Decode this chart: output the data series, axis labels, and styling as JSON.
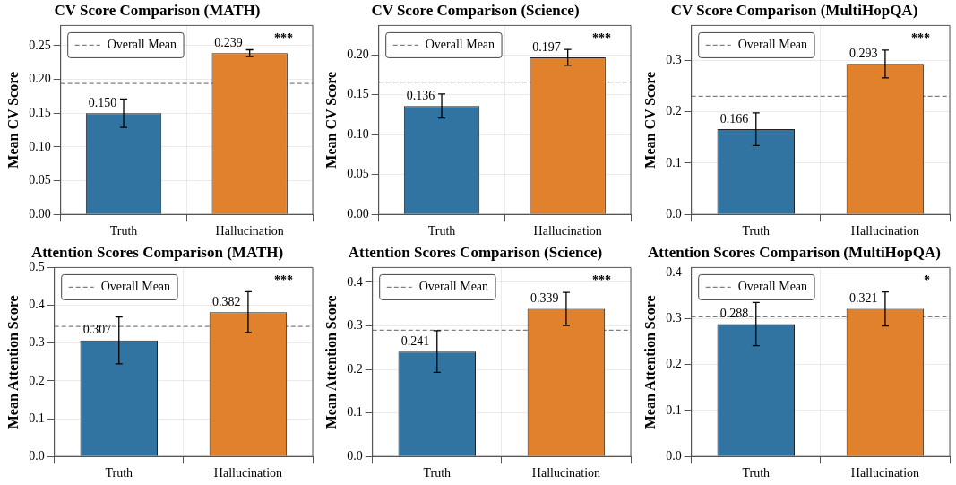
{
  "chart_data": [
    {
      "type": "bar",
      "title": "CV Score Comparison (MATH)",
      "ylabel": "Mean CV Score",
      "categories": [
        "Truth",
        "Hallucination"
      ],
      "values": [
        0.15,
        0.239
      ],
      "colors": [
        "#3274a1",
        "#e1812c"
      ],
      "errors": [
        0.021,
        0.005
      ],
      "value_labels": [
        "0.150",
        "0.239"
      ],
      "ylim": [
        0,
        0.28
      ],
      "yticks": [
        {
          "value": 0,
          "label": "0.00"
        },
        {
          "value": 0.05,
          "label": "0.05"
        },
        {
          "value": 0.1,
          "label": "0.10"
        },
        {
          "value": 0.15,
          "label": "0.15"
        },
        {
          "value": 0.2,
          "label": "0.20"
        },
        {
          "value": 0.25,
          "label": "0.25"
        }
      ],
      "ref_lines": [
        {
          "axis": "y",
          "value": 0.194,
          "label": "Overall Mean",
          "color": "#808080",
          "line_style": "dashed"
        }
      ],
      "annotations": [
        "***"
      ],
      "grid": true,
      "legend": "top left"
    },
    {
      "type": "bar",
      "title": "CV Score Comparison (Science)",
      "ylabel": "Mean CV Score",
      "categories": [
        "Truth",
        "Hallucination"
      ],
      "values": [
        0.136,
        0.197
      ],
      "colors": [
        "#3274a1",
        "#e1812c"
      ],
      "errors": [
        0.015,
        0.01
      ],
      "value_labels": [
        "0.136",
        "0.197"
      ],
      "ylim": [
        0,
        0.237
      ],
      "yticks": [
        {
          "value": 0,
          "label": "0.00"
        },
        {
          "value": 0.05,
          "label": "0.05"
        },
        {
          "value": 0.1,
          "label": "0.10"
        },
        {
          "value": 0.15,
          "label": "0.15"
        },
        {
          "value": 0.2,
          "label": "0.20"
        }
      ],
      "ref_lines": [
        {
          "axis": "y",
          "value": 0.166,
          "label": "Overall Mean",
          "color": "#808080",
          "line_style": "dashed"
        }
      ],
      "annotations": [
        "***"
      ],
      "grid": true,
      "legend": "top left"
    },
    {
      "type": "bar",
      "title": "CV Score Comparison (MultiHopQA)",
      "ylabel": "Mean CV Score",
      "categories": [
        "Truth",
        "Hallucination"
      ],
      "values": [
        0.166,
        0.293
      ],
      "colors": [
        "#3274a1",
        "#e1812c"
      ],
      "errors": [
        0.032,
        0.027
      ],
      "value_labels": [
        "0.166",
        "0.293"
      ],
      "ylim": [
        0,
        0.368
      ],
      "yticks": [
        {
          "value": 0,
          "label": "0.0"
        },
        {
          "value": 0.1,
          "label": "0.1"
        },
        {
          "value": 0.2,
          "label": "0.2"
        },
        {
          "value": 0.3,
          "label": "0.3"
        }
      ],
      "ref_lines": [
        {
          "axis": "y",
          "value": 0.23,
          "label": "Overall Mean",
          "color": "#808080",
          "line_style": "dashed"
        }
      ],
      "annotations": [
        "***"
      ],
      "grid": true,
      "legend": "top left"
    },
    {
      "type": "bar",
      "title": "Attention Scores Comparison (MATH)",
      "ylabel": "Mean Attention Score",
      "categories": [
        "Truth",
        "Hallucination"
      ],
      "values": [
        0.307,
        0.382
      ],
      "colors": [
        "#3274a1",
        "#e1812c"
      ],
      "errors": [
        0.062,
        0.054
      ],
      "value_labels": [
        "0.307",
        "0.382"
      ],
      "ylim": [
        0,
        0.5
      ],
      "yticks": [
        {
          "value": 0,
          "label": "0.0"
        },
        {
          "value": 0.1,
          "label": "0.1"
        },
        {
          "value": 0.2,
          "label": "0.2"
        },
        {
          "value": 0.3,
          "label": "0.3"
        },
        {
          "value": 0.4,
          "label": "0.4"
        },
        {
          "value": 0.5,
          "label": "0.5"
        }
      ],
      "ref_lines": [
        {
          "axis": "y",
          "value": 0.344,
          "label": "Overall Mean",
          "color": "#808080",
          "line_style": "dashed"
        }
      ],
      "annotations": [
        "***"
      ],
      "grid": true,
      "legend": "top left"
    },
    {
      "type": "bar",
      "title": "Attention Scores Comparison (Science)",
      "ylabel": "Mean Attention Score",
      "categories": [
        "Truth",
        "Hallucination"
      ],
      "values": [
        0.241,
        0.339
      ],
      "colors": [
        "#3274a1",
        "#e1812c"
      ],
      "errors": [
        0.048,
        0.038
      ],
      "value_labels": [
        "0.241",
        "0.339"
      ],
      "ylim": [
        0,
        0.434
      ],
      "yticks": [
        {
          "value": 0,
          "label": "0.0"
        },
        {
          "value": 0.1,
          "label": "0.1"
        },
        {
          "value": 0.2,
          "label": "0.2"
        },
        {
          "value": 0.3,
          "label": "0.3"
        },
        {
          "value": 0.4,
          "label": "0.4"
        }
      ],
      "ref_lines": [
        {
          "axis": "y",
          "value": 0.29,
          "label": "Overall Mean",
          "color": "#808080",
          "line_style": "dashed"
        }
      ],
      "annotations": [
        "***"
      ],
      "grid": true,
      "legend": "top left"
    },
    {
      "type": "bar",
      "title": "Attention Scores Comparison (MultiHopQA)",
      "ylabel": "Mean Attention Score",
      "categories": [
        "Truth",
        "Hallucination"
      ],
      "values": [
        0.288,
        0.321
      ],
      "colors": [
        "#3274a1",
        "#e1812c"
      ],
      "errors": [
        0.047,
        0.037
      ],
      "value_labels": [
        "0.288",
        "0.321"
      ],
      "ylim": [
        0,
        0.411
      ],
      "yticks": [
        {
          "value": 0,
          "label": "0.0"
        },
        {
          "value": 0.1,
          "label": "0.1"
        },
        {
          "value": 0.2,
          "label": "0.2"
        },
        {
          "value": 0.3,
          "label": "0.3"
        },
        {
          "value": 0.4,
          "label": "0.4"
        }
      ],
      "ref_lines": [
        {
          "axis": "y",
          "value": 0.304,
          "label": "Overall Mean",
          "color": "#808080",
          "line_style": "dashed"
        }
      ],
      "annotations": [
        "*"
      ],
      "grid": true,
      "legend": "top left"
    }
  ]
}
